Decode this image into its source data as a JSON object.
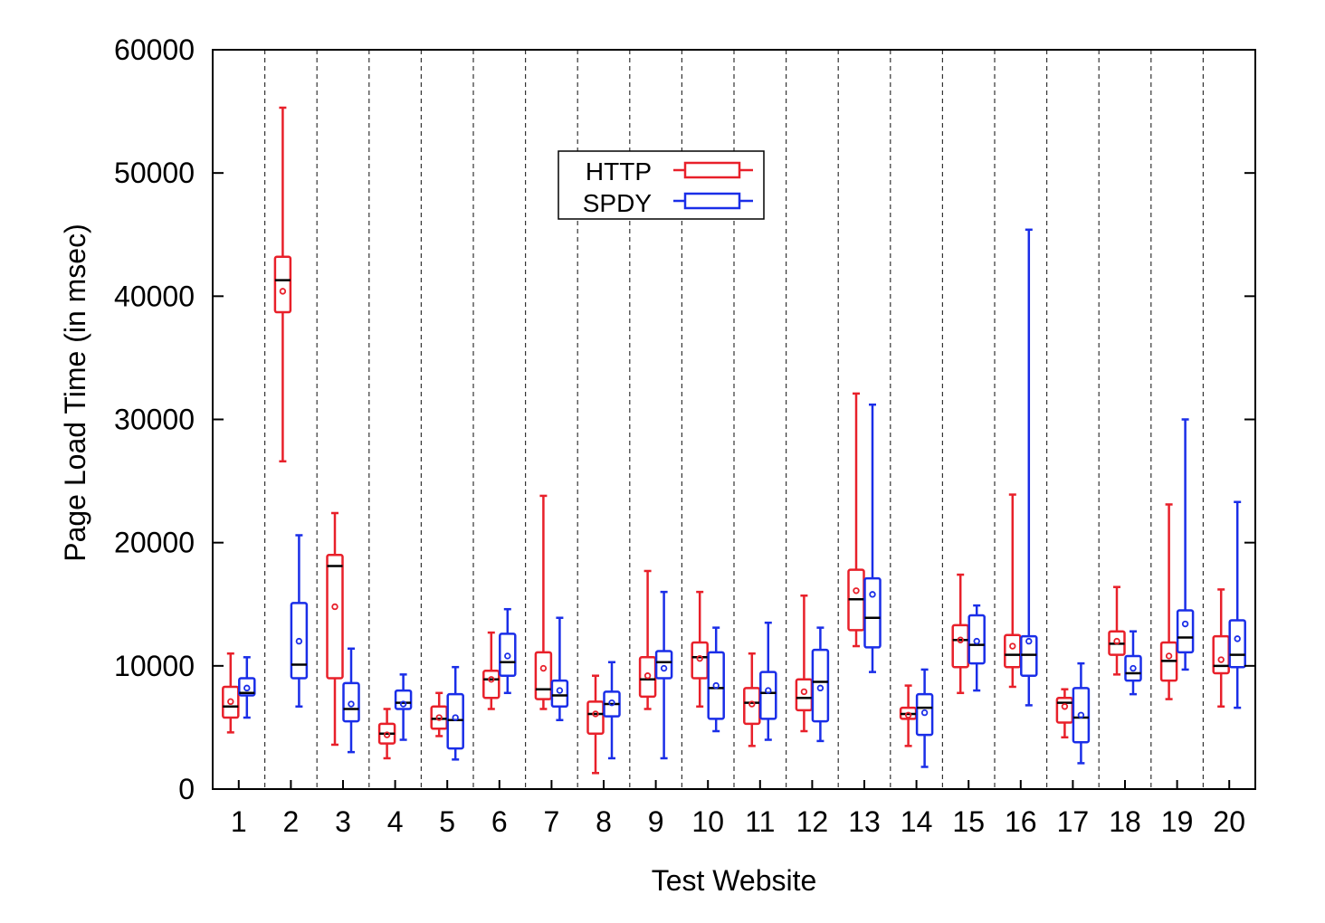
{
  "chart_data": {
    "type": "box",
    "xlabel": "Test Website",
    "ylabel": "Page Load Time (in msec)",
    "ylim": [
      0,
      60000
    ],
    "yticks": [
      0,
      10000,
      20000,
      30000,
      40000,
      50000,
      60000
    ],
    "categories": [
      "1",
      "2",
      "3",
      "4",
      "5",
      "6",
      "7",
      "8",
      "9",
      "10",
      "11",
      "12",
      "13",
      "14",
      "15",
      "16",
      "17",
      "18",
      "19",
      "20"
    ],
    "legend": {
      "placement": "top-center",
      "entries": [
        "HTTP",
        "SPDY"
      ]
    },
    "grid": "vertical dashed separators between websites",
    "series": [
      {
        "name": "HTTP",
        "color": "#e8202a",
        "boxes": [
          {
            "min": 4600,
            "q1": 5800,
            "median": 6700,
            "q3": 8300,
            "max": 11000,
            "mean": 7100
          },
          {
            "min": 26600,
            "q1": 38700,
            "median": 41300,
            "q3": 43200,
            "max": 55300,
            "mean": 40400
          },
          {
            "min": 3600,
            "q1": 9000,
            "median": 18100,
            "q3": 19000,
            "max": 22400,
            "mean": 14800
          },
          {
            "min": 2500,
            "q1": 3700,
            "median": 4500,
            "q3": 5300,
            "max": 6500,
            "mean": 4400
          },
          {
            "min": 4300,
            "q1": 4900,
            "median": 5700,
            "q3": 6700,
            "max": 7800,
            "mean": 5800
          },
          {
            "min": 6500,
            "q1": 7400,
            "median": 8900,
            "q3": 9600,
            "max": 12700,
            "mean": 8900
          },
          {
            "min": 6500,
            "q1": 7300,
            "median": 8100,
            "q3": 11100,
            "max": 23800,
            "mean": 9800
          },
          {
            "min": 1300,
            "q1": 4500,
            "median": 6100,
            "q3": 7100,
            "max": 9200,
            "mean": 6100
          },
          {
            "min": 6500,
            "q1": 7500,
            "median": 8900,
            "q3": 10700,
            "max": 17700,
            "mean": 9200
          },
          {
            "min": 6700,
            "q1": 9000,
            "median": 10700,
            "q3": 11900,
            "max": 16000,
            "mean": 10600
          },
          {
            "min": 3500,
            "q1": 5300,
            "median": 7000,
            "q3": 8200,
            "max": 11000,
            "mean": 6900
          },
          {
            "min": 4700,
            "q1": 6400,
            "median": 7400,
            "q3": 8900,
            "max": 15700,
            "mean": 7900
          },
          {
            "min": 11600,
            "q1": 12900,
            "median": 15400,
            "q3": 17800,
            "max": 32100,
            "mean": 16100
          },
          {
            "min": 3500,
            "q1": 5700,
            "median": 6100,
            "q3": 6600,
            "max": 8400,
            "mean": 6000
          },
          {
            "min": 7800,
            "q1": 9900,
            "median": 12100,
            "q3": 13300,
            "max": 17400,
            "mean": 12100
          },
          {
            "min": 8300,
            "q1": 9900,
            "median": 10900,
            "q3": 12500,
            "max": 23900,
            "mean": 11600
          },
          {
            "min": 4200,
            "q1": 5400,
            "median": 7000,
            "q3": 7400,
            "max": 8100,
            "mean": 6700
          },
          {
            "min": 9300,
            "q1": 10900,
            "median": 11800,
            "q3": 12800,
            "max": 16400,
            "mean": 12000
          },
          {
            "min": 7300,
            "q1": 8800,
            "median": 10400,
            "q3": 11900,
            "max": 23100,
            "mean": 10800
          },
          {
            "min": 6700,
            "q1": 9400,
            "median": 10000,
            "q3": 12400,
            "max": 16200,
            "mean": 10500
          }
        ]
      },
      {
        "name": "SPDY",
        "color": "#1a2ee8",
        "boxes": [
          {
            "min": 5800,
            "q1": 7600,
            "median": 7800,
            "q3": 9000,
            "max": 10700,
            "mean": 8200
          },
          {
            "min": 6700,
            "q1": 9000,
            "median": 10100,
            "q3": 15100,
            "max": 20600,
            "mean": 12000
          },
          {
            "min": 3000,
            "q1": 5500,
            "median": 6500,
            "q3": 8600,
            "max": 11400,
            "mean": 6900
          },
          {
            "min": 4000,
            "q1": 6500,
            "median": 7000,
            "q3": 8000,
            "max": 9300,
            "mean": 6900
          },
          {
            "min": 2400,
            "q1": 3300,
            "median": 5600,
            "q3": 7700,
            "max": 9900,
            "mean": 5800
          },
          {
            "min": 7800,
            "q1": 9200,
            "median": 10300,
            "q3": 12600,
            "max": 14600,
            "mean": 10800
          },
          {
            "min": 5600,
            "q1": 6700,
            "median": 7600,
            "q3": 8800,
            "max": 13900,
            "mean": 8000
          },
          {
            "min": 2500,
            "q1": 5900,
            "median": 6900,
            "q3": 7900,
            "max": 10300,
            "mean": 7000
          },
          {
            "min": 2500,
            "q1": 9000,
            "median": 10300,
            "q3": 11200,
            "max": 16000,
            "mean": 9800
          },
          {
            "min": 4700,
            "q1": 5700,
            "median": 8200,
            "q3": 11100,
            "max": 13100,
            "mean": 8400
          },
          {
            "min": 4000,
            "q1": 5700,
            "median": 7800,
            "q3": 9500,
            "max": 13500,
            "mean": 8000
          },
          {
            "min": 3900,
            "q1": 5500,
            "median": 8700,
            "q3": 11300,
            "max": 13100,
            "mean": 8200
          },
          {
            "min": 9500,
            "q1": 11500,
            "median": 13900,
            "q3": 17100,
            "max": 31200,
            "mean": 15800
          },
          {
            "min": 1800,
            "q1": 4400,
            "median": 6600,
            "q3": 7700,
            "max": 9700,
            "mean": 6200
          },
          {
            "min": 8000,
            "q1": 10200,
            "median": 11700,
            "q3": 14100,
            "max": 14900,
            "mean": 12000
          },
          {
            "min": 6800,
            "q1": 9200,
            "median": 10900,
            "q3": 12400,
            "max": 45400,
            "mean": 12000
          },
          {
            "min": 2100,
            "q1": 3800,
            "median": 5800,
            "q3": 8200,
            "max": 10200,
            "mean": 6000
          },
          {
            "min": 7700,
            "q1": 8800,
            "median": 9400,
            "q3": 10800,
            "max": 12800,
            "mean": 9800
          },
          {
            "min": 9700,
            "q1": 11100,
            "median": 12300,
            "q3": 14500,
            "max": 30000,
            "mean": 13400
          },
          {
            "min": 6600,
            "q1": 9900,
            "median": 10900,
            "q3": 13700,
            "max": 23300,
            "mean": 12200
          }
        ]
      }
    ]
  }
}
